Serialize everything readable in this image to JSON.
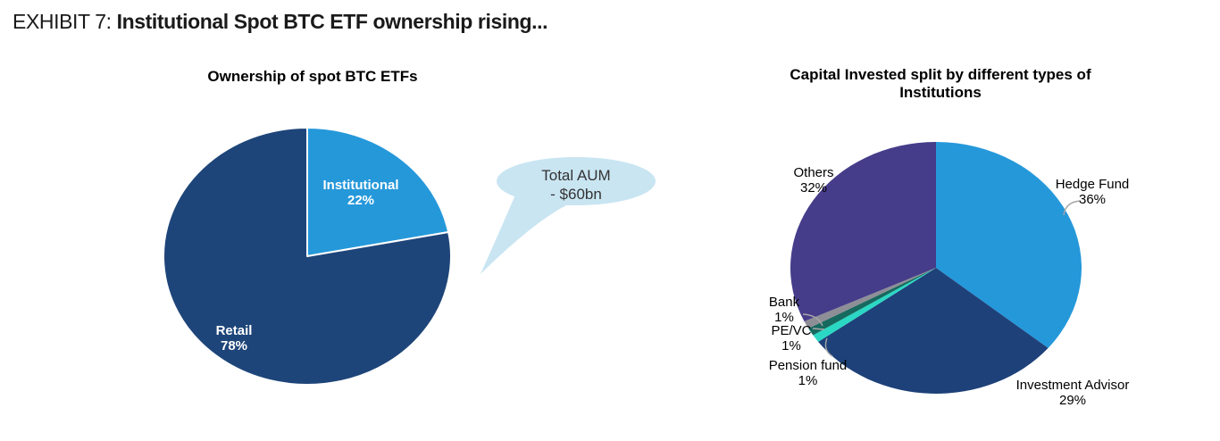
{
  "page": {
    "exhibit_label": "EXHIBIT 7:",
    "exhibit_title": "Institutional Spot BTC ETF ownership rising..."
  },
  "colors": {
    "light_blue": "#2598DA",
    "navy": "#1E4579",
    "purple": "#453D8A",
    "teal": "#2BD8C4",
    "dark_green": "#17695F",
    "gray": "#8E8E96",
    "callout_fill": "#C9E5F2",
    "leader_line": "#A6A6A6"
  },
  "callout": {
    "line1": "Total AUM",
    "line2": "- $60bn"
  },
  "chart_data": [
    {
      "type": "pie",
      "title": "Ownership of spot BTC ETFs",
      "categories": [
        "Institutional",
        "Retail"
      ],
      "values": [
        22,
        78
      ],
      "colors": [
        "#2598DA",
        "#1E4579"
      ],
      "labels": [
        {
          "name": "Institutional",
          "pct": "22%"
        },
        {
          "name": "Retail",
          "pct": "78%"
        }
      ],
      "annotation": "Total AUM - $60bn",
      "legend_position": "none",
      "label_style": "inside-white-bold",
      "start_angle": "top",
      "direction": "clockwise"
    },
    {
      "type": "pie",
      "title": "Capital Invested split by different types of Institutions",
      "categories": [
        "Hedge Fund",
        "Investment Advisor",
        "Pension fund",
        "PE/VC",
        "Bank",
        "Others"
      ],
      "values": [
        36,
        29,
        1,
        1,
        1,
        32
      ],
      "colors": [
        "#2598DA",
        "#1E4179",
        "#2BD8C4",
        "#17695F",
        "#8E8E96",
        "#453D8A"
      ],
      "labels": [
        {
          "name": "Hedge Fund",
          "pct": "36%"
        },
        {
          "name": "Investment Advisor",
          "pct": "29%"
        },
        {
          "name": "Pension fund",
          "pct": "1%"
        },
        {
          "name": "PE/VC",
          "pct": "1%"
        },
        {
          "name": "Bank",
          "pct": "1%"
        },
        {
          "name": "Others",
          "pct": "32%"
        }
      ],
      "legend_position": "none",
      "label_style": "outside-black",
      "start_angle": "top",
      "direction": "clockwise"
    }
  ]
}
